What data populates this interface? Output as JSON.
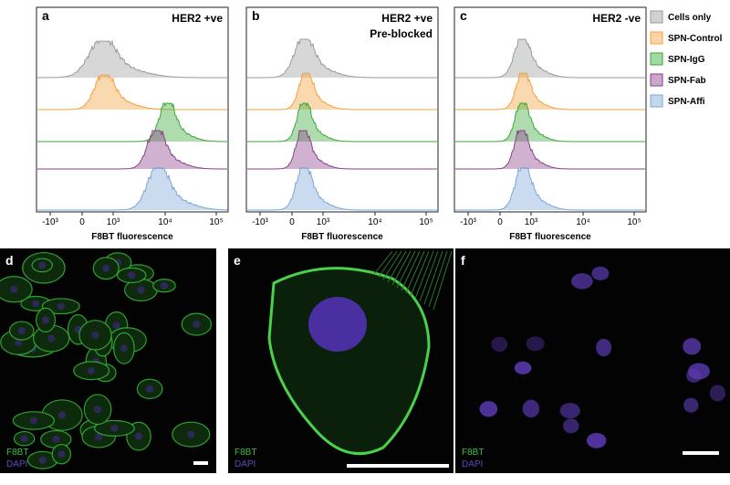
{
  "figure": {
    "panels": [
      {
        "letter": "a",
        "title": [
          "HER2 +ve"
        ],
        "xticks": [
          "-10³",
          "0",
          "10³",
          "10⁴",
          "10⁵"
        ],
        "xlabel": "F8BT fluorescence"
      },
      {
        "letter": "b",
        "title": [
          "HER2 +ve",
          "Pre-blocked"
        ],
        "xticks": [
          "-10³",
          "0",
          "10³",
          "10⁴",
          "10⁵"
        ],
        "xlabel": "F8BT fluorescence"
      },
      {
        "letter": "c",
        "title": [
          "HER2 -ve"
        ],
        "xticks": [
          "-10³",
          "0",
          "10³",
          "10⁴",
          "10⁵"
        ],
        "xlabel": "F8BT fluorescence"
      }
    ],
    "legend": [
      {
        "name": "Cells only",
        "color": "#9a9a9a"
      },
      {
        "name": "SPN-Control",
        "color": "#f5a03a"
      },
      {
        "name": "SPN-IgG",
        "color": "#35a835"
      },
      {
        "name": "SPN-Fab",
        "color": "#8a3f8a"
      },
      {
        "name": "SPN-Affi",
        "color": "#7aa6d8"
      }
    ],
    "images": [
      {
        "letter": "d",
        "channels": [
          "F8BT",
          "DAPI"
        ]
      },
      {
        "letter": "e",
        "channels": [
          "F8BT",
          "DAPI"
        ]
      },
      {
        "letter": "f",
        "channels": [
          "F8BT",
          "DAPI"
        ]
      }
    ]
  }
}
